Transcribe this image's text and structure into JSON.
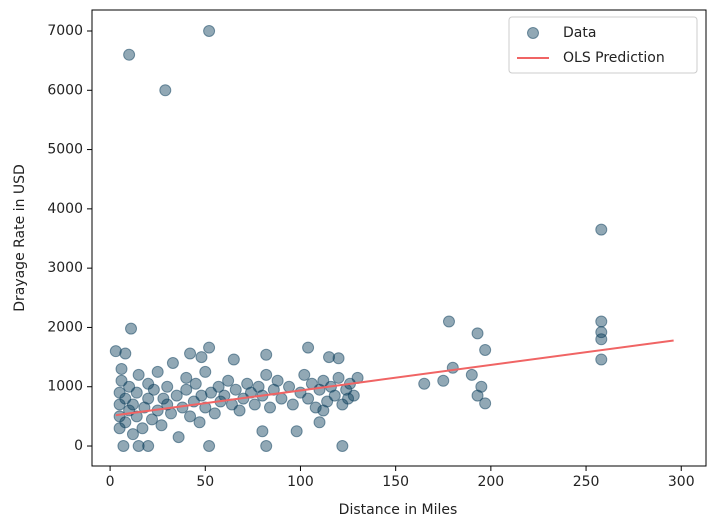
{
  "chart_data": {
    "type": "scatter",
    "x_label": "Distance in Miles",
    "y_label": "Drayage Rate in USD",
    "xlim": [
      -9.5,
      313
    ],
    "ylim": [
      -337,
      7354
    ],
    "xticks": [
      0,
      50,
      100,
      150,
      200,
      250,
      300
    ],
    "yticks": [
      0,
      1000,
      2000,
      3000,
      4000,
      5000,
      6000,
      7000
    ],
    "legend": "upper right",
    "series": [
      {
        "name": "Data",
        "type": "scatter",
        "color": "#0b3d5c",
        "x": [
          5,
          5,
          5,
          5,
          6,
          6,
          8,
          8,
          10,
          10,
          12,
          12,
          14,
          14,
          15,
          17,
          18,
          20,
          20,
          22,
          23,
          25,
          25,
          27,
          28,
          30,
          30,
          32,
          33,
          35,
          36,
          38,
          40,
          40,
          42,
          44,
          45,
          47,
          48,
          50,
          50,
          53,
          55,
          57,
          58,
          60,
          62,
          64,
          66,
          68,
          70,
          72,
          74,
          76,
          78,
          80,
          82,
          84,
          86,
          88,
          90,
          94,
          96,
          100,
          102,
          104,
          106,
          108,
          110,
          112,
          114,
          116,
          118,
          120,
          122,
          124,
          126,
          128,
          10,
          29,
          52,
          258,
          258,
          258,
          258,
          258,
          178,
          193,
          197,
          11,
          3,
          8,
          195,
          197,
          193,
          180,
          175,
          165,
          190,
          20,
          52,
          82,
          122,
          7,
          15,
          80,
          98,
          42,
          52,
          48,
          65,
          82,
          104,
          115,
          120,
          130,
          125,
          110,
          112
        ],
        "values": [
          300,
          500,
          700,
          900,
          1100,
          1300,
          400,
          800,
          600,
          1000,
          200,
          700,
          500,
          900,
          1200,
          300,
          650,
          800,
          1050,
          450,
          950,
          600,
          1250,
          350,
          800,
          700,
          1000,
          550,
          1400,
          850,
          150,
          650,
          950,
          1150,
          500,
          750,
          1050,
          400,
          850,
          650,
          1250,
          900,
          550,
          1000,
          750,
          850,
          1100,
          700,
          950,
          600,
          800,
          1050,
          900,
          700,
          1000,
          850,
          1200,
          650,
          950,
          1100,
          800,
          1000,
          700,
          900,
          1200,
          800,
          1050,
          650,
          950,
          1100,
          750,
          1000,
          850,
          1150,
          700,
          950,
          1050,
          850,
          6600,
          6000,
          7000,
          3650,
          2100,
          1920,
          1800,
          1460,
          2100,
          1900,
          1620,
          1980,
          1600,
          1560,
          1000,
          720,
          850,
          1320,
          1100,
          1050,
          1200,
          0,
          0,
          0,
          0,
          0,
          0,
          250,
          250,
          1560,
          1660,
          1500,
          1460,
          1540,
          1660,
          1500,
          1480,
          1150,
          800,
          400,
          600
        ]
      },
      {
        "name": "OLS Prediction",
        "type": "line",
        "color": "#f06464",
        "x": [
          3,
          296
        ],
        "values": [
          520,
          1780
        ]
      }
    ]
  }
}
